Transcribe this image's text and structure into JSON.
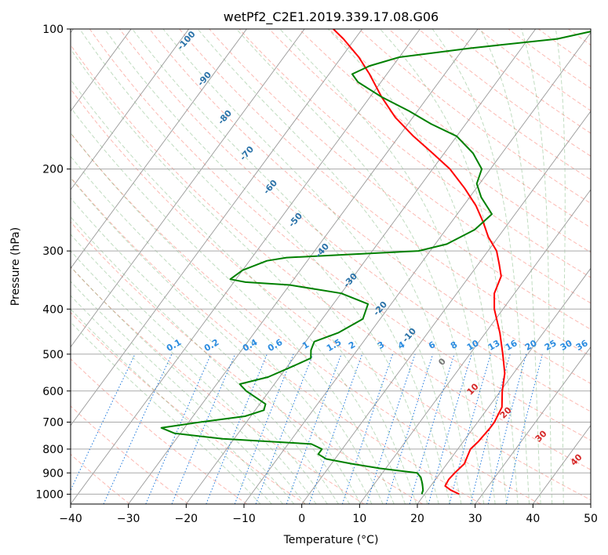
{
  "chart_data": {
    "type": "line",
    "title": "wetPf2_C2E1.2019.339.17.08.G06",
    "xlabel": "Temperature (°C)",
    "ylabel": "Pressure (hPa)",
    "xlim": [
      -40,
      50
    ],
    "ylim": [
      1050,
      100
    ],
    "y_scale": "log",
    "grid": true,
    "x_ticks": [
      "−40",
      "−30",
      "−20",
      "−10",
      "0",
      "10",
      "20",
      "30",
      "40",
      "50"
    ],
    "y_ticks": [
      "100",
      "200",
      "300",
      "400",
      "500",
      "600",
      "700",
      "800",
      "900",
      "1000"
    ],
    "dry_adiabat_labels": [
      "-100",
      "-90",
      "-80",
      "-70",
      "-60",
      "-50",
      "-40",
      "-30",
      "-20",
      "-10"
    ],
    "mixing_ratio_labels": [
      "0.1",
      "0.2",
      "0.4",
      "0.6",
      "1",
      "1.5",
      "2",
      "3",
      "4",
      "6",
      "8",
      "10",
      "13",
      "16",
      "20",
      "25",
      "30",
      "36"
    ],
    "moist_adiabat_labels": [
      "0",
      "10",
      "20",
      "30",
      "40"
    ],
    "series": [
      {
        "color": "#ff0000",
        "points": [
          [
            1000,
            26.0
          ],
          [
            980,
            24.0
          ],
          [
            960,
            22.5
          ],
          [
            930,
            22.3
          ],
          [
            900,
            22.5
          ],
          [
            860,
            23.0
          ],
          [
            830,
            22.6
          ],
          [
            800,
            22.2
          ],
          [
            770,
            22.6
          ],
          [
            720,
            22.9
          ],
          [
            700,
            22.9
          ],
          [
            650,
            22.3
          ],
          [
            600,
            20.3
          ],
          [
            550,
            18.5
          ],
          [
            500,
            15.7
          ],
          [
            450,
            12.5
          ],
          [
            400,
            8.5
          ],
          [
            370,
            6.5
          ],
          [
            340,
            5.5
          ],
          [
            320,
            3.6
          ],
          [
            300,
            1.5
          ],
          [
            280,
            -1.7
          ],
          [
            260,
            -4.5
          ],
          [
            240,
            -7.8
          ],
          [
            220,
            -12.0
          ],
          [
            200,
            -17.0
          ],
          [
            185,
            -22.0
          ],
          [
            170,
            -27.5
          ],
          [
            155,
            -33.0
          ],
          [
            140,
            -38.0
          ],
          [
            125,
            -43.0
          ],
          [
            115,
            -47.0
          ],
          [
            105,
            -52.0
          ],
          [
            100,
            -55.0
          ]
        ]
      },
      {
        "color": "#008000",
        "points": [
          [
            1000,
            19.5
          ],
          [
            980,
            19.2
          ],
          [
            950,
            18.3
          ],
          [
            920,
            17.2
          ],
          [
            900,
            16.0
          ],
          [
            880,
            9.0
          ],
          [
            860,
            3.5
          ],
          [
            840,
            -1.5
          ],
          [
            820,
            -3.5
          ],
          [
            800,
            -3.5
          ],
          [
            780,
            -6.0
          ],
          [
            760,
            -22.0
          ],
          [
            740,
            -31.0
          ],
          [
            720,
            -34.0
          ],
          [
            700,
            -28.0
          ],
          [
            680,
            -21.0
          ],
          [
            660,
            -18.5
          ],
          [
            640,
            -19.0
          ],
          [
            600,
            -24.0
          ],
          [
            580,
            -26.0
          ],
          [
            560,
            -22.0
          ],
          [
            530,
            -19.0
          ],
          [
            510,
            -17.0
          ],
          [
            490,
            -18.0
          ],
          [
            470,
            -18.5
          ],
          [
            450,
            -15.5
          ],
          [
            420,
            -13.0
          ],
          [
            390,
            -14.0
          ],
          [
            370,
            -20.0
          ],
          [
            355,
            -30.0
          ],
          [
            350,
            -38.0
          ],
          [
            345,
            -41.0
          ],
          [
            330,
            -40.0
          ],
          [
            315,
            -37.0
          ],
          [
            310,
            -34.0
          ],
          [
            305,
            -23.0
          ],
          [
            300,
            -12.0
          ],
          [
            290,
            -8.0
          ],
          [
            270,
            -5.0
          ],
          [
            250,
            -4.0
          ],
          [
            230,
            -8.0
          ],
          [
            215,
            -10.5
          ],
          [
            200,
            -11.5
          ],
          [
            185,
            -15.0
          ],
          [
            170,
            -20.0
          ],
          [
            160,
            -26.0
          ],
          [
            150,
            -31.5
          ],
          [
            140,
            -38.0
          ],
          [
            130,
            -44.0
          ],
          [
            125,
            -46.0
          ],
          [
            120,
            -44.0
          ],
          [
            115,
            -40.0
          ],
          [
            110,
            -29.0
          ],
          [
            105,
            -15.0
          ],
          [
            100,
            -8.5
          ]
        ]
      }
    ]
  }
}
